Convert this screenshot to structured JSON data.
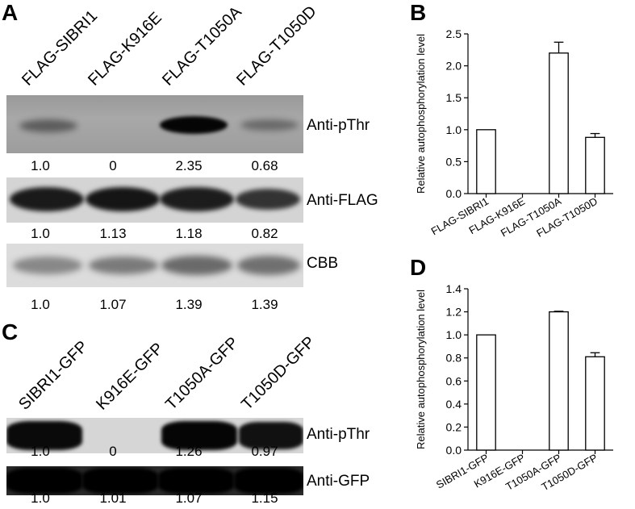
{
  "panel_a": {
    "letter": "A",
    "lanes": [
      "FLAG-SIBRI1",
      "FLAG-K916E",
      "FLAG-T1050A",
      "FLAG-T1050D"
    ],
    "blots": [
      {
        "label": "Anti-pThr",
        "values": [
          "1.0",
          "0",
          "2.35",
          "0.68"
        ]
      },
      {
        "label": "Anti-FLAG",
        "values": [
          "1.0",
          "1.13",
          "1.18",
          "0.82"
        ]
      },
      {
        "label": "CBB",
        "values": [
          "1.0",
          "1.07",
          "1.39",
          "1.39"
        ]
      }
    ]
  },
  "panel_c": {
    "letter": "C",
    "lanes": [
      "SIBRI1-GFP",
      "K916E-GFP",
      "T1050A-GFP",
      "T1050D-GFP"
    ],
    "blots": [
      {
        "label": "Anti-pThr",
        "values": [
          "1.0",
          "0",
          "1.26",
          "0.97"
        ]
      },
      {
        "label": "Anti-GFP",
        "values": [
          "1.0",
          "1.01",
          "1.07",
          "1.15"
        ]
      }
    ]
  },
  "chart_data": [
    {
      "panel": "B",
      "type": "bar",
      "ylabel": "Relative autophosphorylation level",
      "categories": [
        "FLAG-SIBRI1",
        "FLAG-K916E",
        "FLAG-T1050A",
        "FLAG-T1050D"
      ],
      "values": [
        1.0,
        0,
        2.2,
        0.88
      ],
      "errors": [
        0,
        0,
        0.17,
        0.06
      ],
      "ylim": [
        0,
        2.5
      ],
      "yticks": [
        "0.0",
        "0.5",
        "1.0",
        "1.5",
        "2.0",
        "2.5"
      ],
      "grid": false
    },
    {
      "panel": "D",
      "type": "bar",
      "ylabel": "Relative autophosphorylation level",
      "categories": [
        "SIBRI1-GFP",
        "K916E-GFP",
        "T1050A-GFP",
        "T1050D-GFP"
      ],
      "values": [
        1.0,
        0,
        1.2,
        0.81
      ],
      "errors": [
        0,
        0,
        0.005,
        0.035
      ],
      "ylim": [
        0,
        1.4
      ],
      "yticks": [
        "0.0",
        "0.2",
        "0.4",
        "0.6",
        "0.8",
        "1.0",
        "1.2",
        "1.4"
      ],
      "grid": false
    }
  ]
}
